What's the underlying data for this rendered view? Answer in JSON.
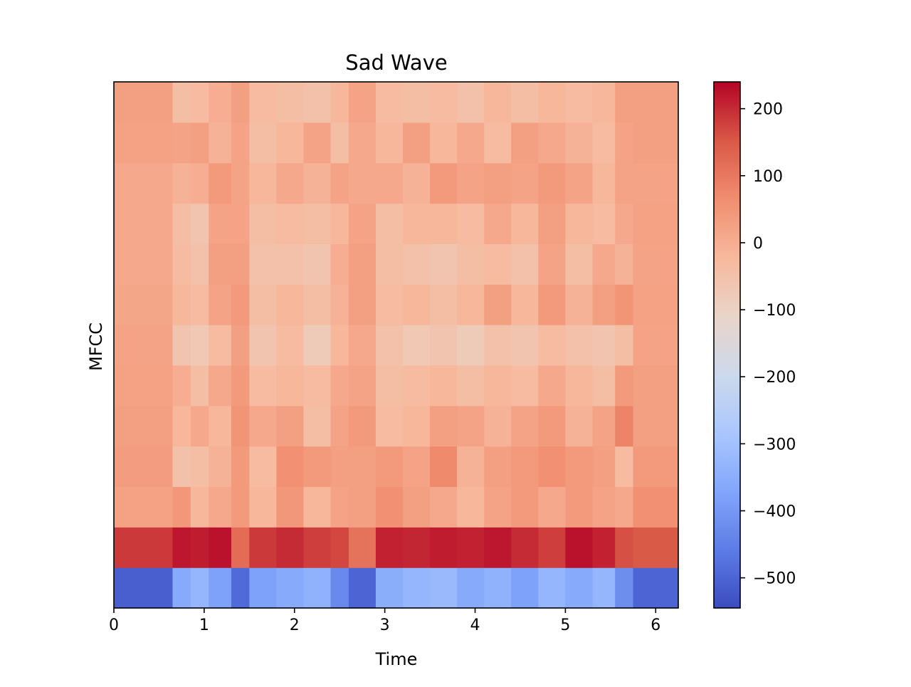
{
  "chart_data": {
    "type": "heatmap",
    "title": "Sad Wave",
    "xlabel": "Time",
    "ylabel": "MFCC",
    "xlim": [
      0,
      6.25
    ],
    "x_ticks": [
      0,
      1,
      2,
      3,
      4,
      5,
      6
    ],
    "x_tick_labels": [
      "0",
      "1",
      "2",
      "3",
      "4",
      "5",
      "6"
    ],
    "y_ticks": [],
    "grid": false,
    "n_coefficients": 13,
    "colormap": "coolwarm",
    "colorbar": {
      "range": [
        -545,
        240
      ],
      "ticks": [
        200,
        100,
        0,
        -100,
        -200,
        -300,
        -400,
        -500
      ],
      "tick_labels": [
        "200",
        "100",
        "0",
        "−100",
        "−200",
        "−300",
        "−400",
        "−500"
      ],
      "colors": [
        "#3b4cc0",
        "#5d7ce6",
        "#82a6fb",
        "#aac7fd",
        "#cdd9ec",
        "#ead4c8",
        "#f7b89c",
        "#f18d6f",
        "#d95847",
        "#b40426"
      ]
    },
    "time_segments": [
      {
        "t_start": 0.0,
        "t_end": 0.65,
        "mfcc": [
          -510,
          185,
          25,
          35,
          30,
          25,
          20,
          15,
          10,
          10,
          10,
          25,
          30
        ]
      },
      {
        "t_start": 0.65,
        "t_end": 0.85,
        "mfcc": [
          -360,
          220,
          45,
          -50,
          -20,
          0,
          -60,
          -20,
          -30,
          -40,
          -10,
          20,
          -40
        ]
      },
      {
        "t_start": 0.85,
        "t_end": 1.05,
        "mfcc": [
          -330,
          215,
          -20,
          -40,
          10,
          -40,
          -70,
          -30,
          -50,
          -60,
          0,
          30,
          -30
        ]
      },
      {
        "t_start": 1.05,
        "t_end": 1.3,
        "mfcc": [
          -380,
          225,
          10,
          -10,
          -20,
          10,
          -30,
          20,
          30,
          20,
          40,
          -10,
          0
        ]
      },
      {
        "t_start": 1.3,
        "t_end": 1.5,
        "mfcc": [
          -490,
          120,
          40,
          40,
          50,
          40,
          30,
          40,
          30,
          20,
          20,
          20,
          30
        ]
      },
      {
        "t_start": 1.5,
        "t_end": 1.8,
        "mfcc": [
          -380,
          185,
          -20,
          -30,
          10,
          -30,
          -60,
          -40,
          -50,
          -40,
          -20,
          -40,
          -30
        ]
      },
      {
        "t_start": 1.8,
        "t_end": 2.1,
        "mfcc": [
          -360,
          200,
          45,
          60,
          30,
          -20,
          -30,
          -20,
          -50,
          -30,
          10,
          -20,
          -40
        ]
      },
      {
        "t_start": 2.1,
        "t_end": 2.4,
        "mfcc": [
          -340,
          180,
          -20,
          40,
          -40,
          -30,
          -80,
          -40,
          -60,
          -40,
          -10,
          20,
          -50
        ]
      },
      {
        "t_start": 2.4,
        "t_end": 2.6,
        "mfcc": [
          -430,
          170,
          20,
          30,
          20,
          10,
          -20,
          -10,
          0,
          -20,
          20,
          -40,
          -20
        ]
      },
      {
        "t_start": 2.6,
        "t_end": 2.9,
        "mfcc": [
          -500,
          110,
          30,
          30,
          40,
          20,
          10,
          30,
          30,
          20,
          10,
          10,
          20
        ]
      },
      {
        "t_start": 2.9,
        "t_end": 3.2,
        "mfcc": [
          -350,
          210,
          60,
          40,
          -30,
          -40,
          -50,
          -30,
          -40,
          -40,
          10,
          -20,
          -30
        ]
      },
      {
        "t_start": 3.2,
        "t_end": 3.5,
        "mfcc": [
          -330,
          205,
          30,
          20,
          -20,
          -30,
          -70,
          -20,
          -50,
          -20,
          -10,
          30,
          -40
        ]
      },
      {
        "t_start": 3.5,
        "t_end": 3.8,
        "mfcc": [
          -320,
          215,
          10,
          70,
          30,
          -20,
          -60,
          -40,
          -60,
          -20,
          40,
          -20,
          -30
        ]
      },
      {
        "t_start": 3.8,
        "t_end": 4.1,
        "mfcc": [
          -360,
          210,
          -20,
          -10,
          20,
          -40,
          -80,
          -20,
          -40,
          -30,
          20,
          10,
          -50
        ]
      },
      {
        "t_start": 4.1,
        "t_end": 4.4,
        "mfcc": [
          -340,
          220,
          20,
          30,
          -10,
          -20,
          -50,
          30,
          -30,
          10,
          30,
          -30,
          -20
        ]
      },
      {
        "t_start": 4.4,
        "t_end": 4.7,
        "mfcc": [
          -380,
          200,
          40,
          40,
          20,
          -30,
          -60,
          -20,
          -50,
          -20,
          20,
          30,
          -40
        ]
      },
      {
        "t_start": 4.7,
        "t_end": 5.0,
        "mfcc": [
          -330,
          180,
          10,
          60,
          40,
          10,
          -30,
          40,
          20,
          30,
          40,
          10,
          -20
        ]
      },
      {
        "t_start": 5.0,
        "t_end": 5.3,
        "mfcc": [
          -360,
          225,
          40,
          40,
          -10,
          -20,
          -50,
          -10,
          -40,
          -20,
          20,
          -10,
          -30
        ]
      },
      {
        "t_start": 5.3,
        "t_end": 5.55,
        "mfcc": [
          -330,
          210,
          20,
          30,
          20,
          -40,
          -60,
          30,
          10,
          -30,
          -20,
          -30,
          -20
        ]
      },
      {
        "t_start": 5.55,
        "t_end": 5.75,
        "mfcc": [
          -420,
          160,
          10,
          -30,
          80,
          40,
          -40,
          50,
          -10,
          10,
          20,
          20,
          30
        ]
      },
      {
        "t_start": 5.75,
        "t_end": 6.25,
        "mfcc": [
          -500,
          150,
          60,
          40,
          30,
          30,
          20,
          25,
          20,
          25,
          20,
          30,
          30
        ]
      }
    ]
  }
}
